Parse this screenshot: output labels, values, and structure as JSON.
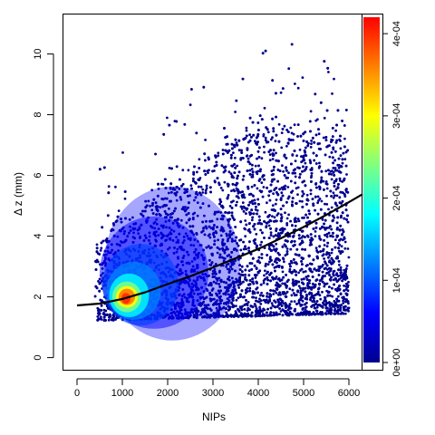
{
  "chart_data": {
    "type": "scatter",
    "title": "",
    "xlabel": "NIPs",
    "ylabel": "Δ z (mm)",
    "xlim": [
      -300,
      6300
    ],
    "ylim": [
      -0.4,
      11.3
    ],
    "x_ticks": [
      0,
      1000,
      2000,
      3000,
      4000,
      5000,
      6000
    ],
    "y_ticks": [
      0,
      2,
      4,
      6,
      8,
      10
    ],
    "grid": false,
    "legend": "none",
    "point_color": "#00008F",
    "density_peak": {
      "x": 1100,
      "y": 2.0
    },
    "fit_line": {
      "x": [
        0,
        500,
        1000,
        1500,
        2000,
        2500,
        3000,
        3500,
        4000,
        4500,
        5000,
        5500,
        6000,
        6300
      ],
      "y": [
        1.72,
        1.78,
        1.93,
        2.15,
        2.42,
        2.68,
        2.97,
        3.27,
        3.58,
        3.93,
        4.3,
        4.7,
        5.12,
        5.38
      ]
    },
    "colorbar": {
      "min": 0,
      "max": 0.00042,
      "ticks": [
        0,
        0.0001,
        0.0002,
        0.0003,
        0.0004
      ],
      "tick_labels": [
        "0e+00",
        "1e-04",
        "2e-04",
        "3e-04",
        "4e-04"
      ],
      "colors": [
        "#00008F",
        "#0000FF",
        "#0080FF",
        "#00FFFF",
        "#80FF80",
        "#FFFF00",
        "#FF8000",
        "#FF0000"
      ]
    }
  }
}
